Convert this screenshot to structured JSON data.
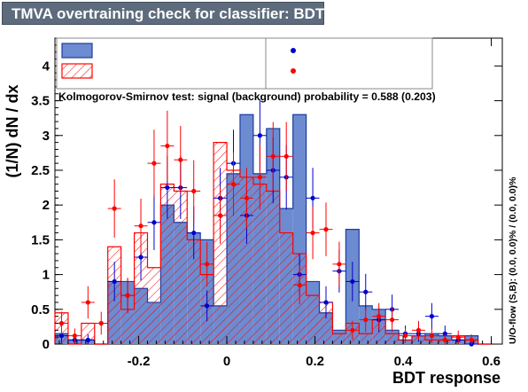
{
  "title": "TMVA overtraining check for classifier: BDT",
  "chart_data": {
    "type": "bar",
    "title": "TMVA overtraining check for classifier: BDT",
    "xlabel": "BDT response",
    "ylabel": "(1/N) dN / dx",
    "right_label": "U/O-flow (S,B): (0.0, 0.0)% / (0.0, 0.0)%",
    "annotation": "Kolmogorov-Smirnov test: signal (background) probability = 0.588 (0.203)",
    "xlim": [
      -0.39,
      0.625
    ],
    "ylim": [
      0,
      4.4
    ],
    "x_ticks": [
      "-0.2",
      "0",
      "0.2",
      "0.4",
      "0.6"
    ],
    "y_ticks": [
      "0",
      "0.5",
      "1",
      "1.5",
      "2",
      "2.5",
      "3",
      "3.5",
      "4"
    ],
    "grid": false,
    "legend": "top",
    "bin_edges": [
      -0.39,
      -0.36,
      -0.33,
      -0.3,
      -0.27,
      -0.24,
      -0.21,
      -0.18,
      -0.15,
      -0.12,
      -0.09,
      -0.06,
      -0.03,
      0.0,
      0.03,
      0.06,
      0.09,
      0.12,
      0.15,
      0.18,
      0.21,
      0.24,
      0.27,
      0.3,
      0.33,
      0.36,
      0.39,
      0.42,
      0.45,
      0.48,
      0.51,
      0.54,
      0.57,
      0.6
    ],
    "series": [
      {
        "values": [
          0.15,
          0.06,
          0.06,
          0.0,
          0.9,
          0.9,
          0.8,
          0.6,
          2.0,
          1.75,
          1.6,
          1.5,
          0.55,
          2.45,
          3.3,
          2.45,
          3.1,
          1.95,
          3.3,
          0.9,
          0.45,
          0.2,
          1.65,
          0.55,
          0.5,
          0.2,
          0.06,
          0.12,
          0.15,
          0.12,
          0.06,
          0.12,
          0.0
        ],
        "color": "#6d8bd0"
      },
      {
        "values": [
          0.45,
          0.0,
          0.3,
          0.0,
          1.4,
          0.5,
          1.6,
          1.1,
          2.3,
          2.2,
          1.5,
          1.0,
          2.9,
          2.5,
          2.4,
          2.3,
          2.2,
          1.6,
          1.3,
          0.7,
          0.6,
          0.15,
          0.3,
          0.15,
          0.35,
          0.15,
          0.06,
          0.12,
          0.06,
          0.06,
          0.12,
          0.06,
          0.0
        ],
        "color": "#ff0000"
      },
      {
        "x": [
          -0.375,
          -0.345,
          -0.315,
          -0.255,
          -0.225,
          -0.195,
          -0.165,
          -0.135,
          -0.105,
          -0.075,
          -0.045,
          -0.015,
          0.015,
          0.045,
          0.075,
          0.105,
          0.135,
          0.165,
          0.195,
          0.225,
          0.255,
          0.285,
          0.315,
          0.345,
          0.375,
          0.405,
          0.435,
          0.465,
          0.495,
          0.525,
          0.555
        ],
        "values": [
          0.12,
          0.06,
          0.06,
          0.9,
          0.7,
          1.25,
          1.75,
          2.25,
          2.25,
          1.6,
          0.55,
          2.1,
          2.6,
          1.85,
          3.0,
          2.5,
          2.4,
          1.0,
          2.1,
          0.6,
          1.05,
          0.9,
          0.75,
          0.35,
          0.5,
          0.15,
          0.15,
          0.4,
          0.15,
          0.06,
          0.0
        ],
        "color": "#0000cc"
      },
      {
        "x": [
          -0.375,
          -0.345,
          -0.315,
          -0.285,
          -0.255,
          -0.225,
          -0.195,
          -0.165,
          -0.135,
          -0.105,
          -0.075,
          -0.045,
          -0.015,
          0.015,
          0.045,
          0.075,
          0.105,
          0.135,
          0.165,
          0.195,
          0.225,
          0.255,
          0.285,
          0.315,
          0.345,
          0.375,
          0.405,
          0.435,
          0.465,
          0.495,
          0.525,
          0.555
        ],
        "values": [
          0.3,
          0.12,
          0.6,
          0.3,
          1.95,
          0.7,
          1.7,
          2.6,
          2.85,
          2.65,
          2.2,
          1.15,
          1.85,
          2.3,
          2.1,
          2.4,
          2.7,
          2.7,
          0.85,
          1.6,
          1.65,
          1.15,
          0.2,
          0.35,
          0.4,
          0.35,
          0.12,
          0.2,
          0.12,
          0.06,
          0.1,
          0.06
        ],
        "color": "#ff0000"
      }
    ]
  }
}
